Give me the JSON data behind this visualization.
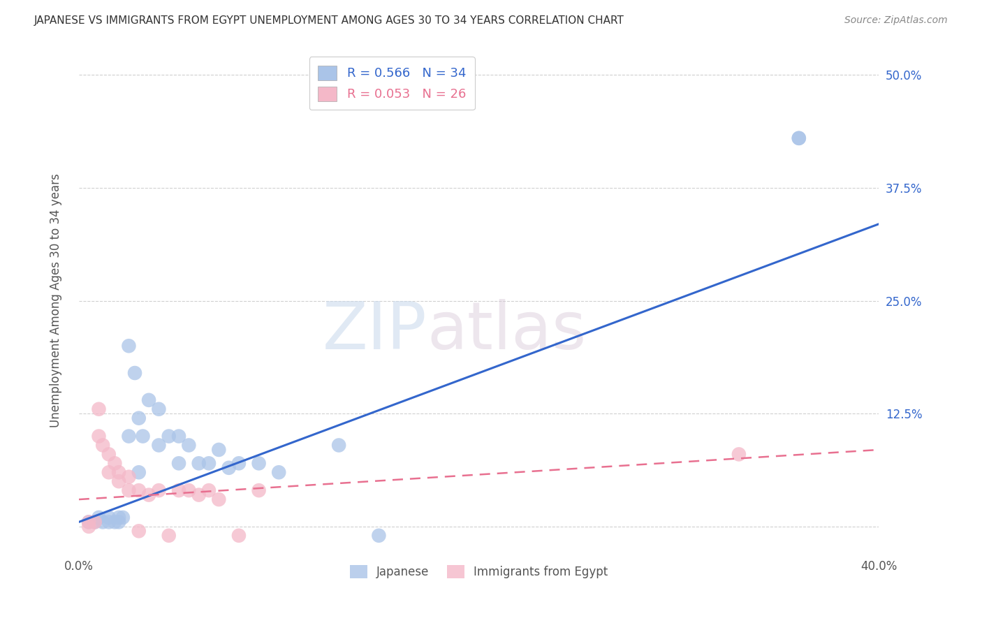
{
  "title": "JAPANESE VS IMMIGRANTS FROM EGYPT UNEMPLOYMENT AMONG AGES 30 TO 34 YEARS CORRELATION CHART",
  "source": "Source: ZipAtlas.com",
  "ylabel": "Unemployment Among Ages 30 to 34 years",
  "xlim": [
    0.0,
    0.4
  ],
  "ylim": [
    -0.03,
    0.53
  ],
  "x_ticks": [
    0.0,
    0.05,
    0.1,
    0.15,
    0.2,
    0.25,
    0.3,
    0.35,
    0.4
  ],
  "y_ticks": [
    0.0,
    0.125,
    0.25,
    0.375,
    0.5
  ],
  "grid_color": "#d0d0d0",
  "background_color": "#ffffff",
  "watermark_zip": "ZIP",
  "watermark_atlas": "atlas",
  "legend_R_japanese": "0.566",
  "legend_N_japanese": "34",
  "legend_R_egypt": "0.053",
  "legend_N_egypt": "26",
  "japanese_color": "#aac4e8",
  "egypt_color": "#f4b8c8",
  "japanese_line_color": "#3366cc",
  "egypt_line_color": "#e87090",
  "japanese_x": [
    0.005,
    0.008,
    0.01,
    0.012,
    0.015,
    0.015,
    0.018,
    0.02,
    0.02,
    0.022,
    0.025,
    0.025,
    0.028,
    0.03,
    0.03,
    0.032,
    0.035,
    0.04,
    0.04,
    0.045,
    0.05,
    0.05,
    0.055,
    0.06,
    0.065,
    0.07,
    0.075,
    0.08,
    0.09,
    0.1,
    0.13,
    0.15,
    0.36,
    0.36
  ],
  "japanese_y": [
    0.005,
    0.005,
    0.01,
    0.005,
    0.005,
    0.01,
    0.005,
    0.005,
    0.01,
    0.01,
    0.2,
    0.1,
    0.17,
    0.12,
    0.06,
    0.1,
    0.14,
    0.13,
    0.09,
    0.1,
    0.1,
    0.07,
    0.09,
    0.07,
    0.07,
    0.085,
    0.065,
    0.07,
    0.07,
    0.06,
    0.09,
    -0.01,
    0.43,
    0.43
  ],
  "egypt_x": [
    0.005,
    0.005,
    0.008,
    0.01,
    0.01,
    0.012,
    0.015,
    0.015,
    0.018,
    0.02,
    0.02,
    0.025,
    0.025,
    0.03,
    0.03,
    0.035,
    0.04,
    0.045,
    0.05,
    0.055,
    0.06,
    0.065,
    0.07,
    0.08,
    0.09,
    0.33
  ],
  "egypt_y": [
    0.005,
    0.0,
    0.005,
    0.13,
    0.1,
    0.09,
    0.08,
    0.06,
    0.07,
    0.06,
    0.05,
    0.055,
    0.04,
    0.04,
    -0.005,
    0.035,
    0.04,
    -0.01,
    0.04,
    0.04,
    0.035,
    0.04,
    0.03,
    -0.01,
    0.04,
    0.08
  ],
  "japanese_trend_x": [
    0.0,
    0.4
  ],
  "japanese_trend_y": [
    0.005,
    0.335
  ],
  "egypt_trend_x": [
    0.0,
    0.4
  ],
  "egypt_trend_y": [
    0.03,
    0.085
  ]
}
